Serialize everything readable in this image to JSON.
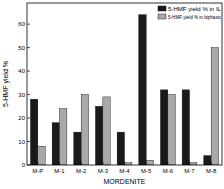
{
  "chart_data": {
    "type": "bar",
    "x_label": "MORDENITE",
    "y_label": "5-HMF yield %",
    "categories": [
      "M-P",
      "M-1",
      "M-2",
      "M-3",
      "M-4",
      "M-5",
      "M-6",
      "M-7",
      "M-8"
    ],
    "series": [
      {
        "name": "5-HMF yield % in IL",
        "color": "#1a1a1a",
        "values": [
          28,
          18,
          14,
          25,
          14,
          64,
          32,
          32,
          4
        ]
      },
      {
        "name": "5-HMF yield % in biphasic",
        "color": "#a9a9a9",
        "values": [
          8,
          24,
          30,
          29,
          1,
          2,
          30,
          1,
          50
        ]
      }
    ],
    "ylim": [
      0,
      69
    ],
    "yticks": [
      0,
      10,
      20,
      30,
      40,
      50,
      60
    ],
    "grid": false,
    "legend": "upper right"
  }
}
